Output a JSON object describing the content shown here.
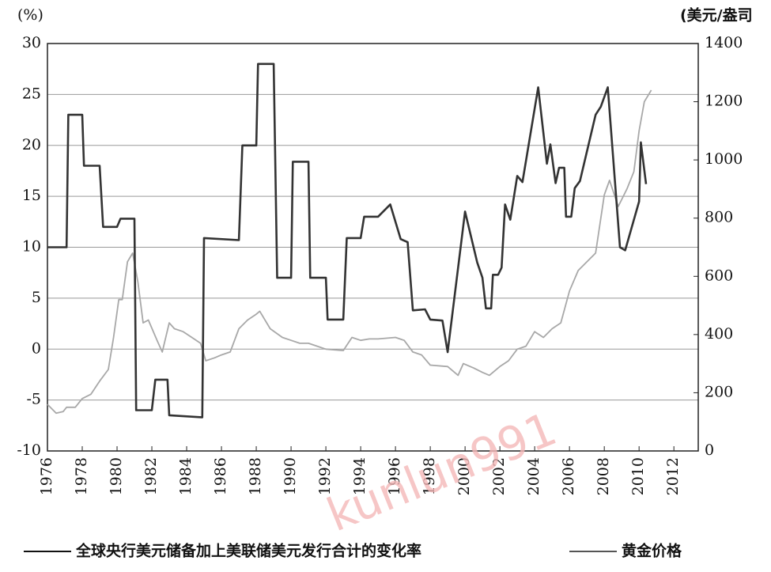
{
  "chart_data": {
    "type": "line",
    "y_label": "(%)",
    "y2_label": "(美元/盎司",
    "watermark": "kunlun991",
    "xlim": [
      1976,
      2013.4
    ],
    "xticks": [
      1976,
      1978,
      1980,
      1982,
      1984,
      1986,
      1988,
      1990,
      1992,
      1994,
      1996,
      1998,
      2000,
      2002,
      2004,
      2006,
      2008,
      2010,
      2012
    ],
    "ylim": [
      -10,
      30
    ],
    "yticks": [
      -10,
      -5,
      0,
      5,
      10,
      15,
      20,
      25,
      30
    ],
    "y2lim": [
      0,
      1400
    ],
    "y2ticks": [
      0,
      200,
      400,
      600,
      800,
      1000,
      1200,
      1400
    ],
    "grid": true,
    "legend": "bottom",
    "series": [
      {
        "name": "全球央行美元储备加上美联储美元发行合计的变化率",
        "color": "#333333",
        "x": [
          1976,
          1977.1,
          1977.2,
          1978,
          1978.1,
          1979,
          1979.2,
          1980,
          1980.2,
          1981,
          1981.1,
          1982,
          1982.2,
          1982.9,
          1983,
          1984.9,
          1985,
          1987,
          1987.2,
          1988,
          1988.1,
          1989,
          1989.2,
          1990,
          1990.1,
          1991,
          1991.1,
          1992,
          1992.1,
          1993,
          1993.2,
          1994,
          1994.2,
          1995,
          1995.7,
          1996.3,
          1996.7,
          1997,
          1997.7,
          1998,
          1998.7,
          1999,
          2000,
          2000.7,
          2001,
          2001.2,
          2001.5,
          2001.6,
          2001.9,
          2002.1,
          2002.3,
          2002.6,
          2003,
          2003.3,
          2004.2,
          2004.7,
          2004.9,
          2005.2,
          2005.4,
          2005.7,
          2005.8,
          2006.1,
          2006.3,
          2006.6,
          2007.5,
          2007.8,
          2008.2,
          2008.9,
          2009.2,
          2010,
          2010.1,
          2010.4
        ],
        "values": [
          10,
          10,
          23,
          23,
          18,
          18,
          12,
          12,
          12.8,
          12.8,
          -6,
          -6,
          -3,
          -3,
          -6.5,
          -6.7,
          10.9,
          10.7,
          20,
          20,
          28,
          28,
          7,
          7,
          18.4,
          18.4,
          7,
          7,
          2.9,
          2.9,
          10.9,
          10.9,
          13,
          13,
          14.2,
          10.8,
          10.5,
          3.8,
          3.9,
          2.9,
          2.8,
          -0.3,
          13.5,
          8.5,
          7,
          4,
          4,
          7.3,
          7.3,
          8,
          14.2,
          12.7,
          17,
          16.4,
          25.7,
          18.2,
          20.1,
          16.3,
          17.8,
          17.8,
          13,
          13,
          15.8,
          16.5,
          23,
          23.8,
          25.7,
          10,
          9.7,
          14.5,
          20.3,
          16.2
        ]
      },
      {
        "name": "黄金价格",
        "color": "#a8a8a8",
        "axis": "y2",
        "x": [
          1976,
          1976.5,
          1976.9,
          1977.1,
          1977.6,
          1978,
          1978.5,
          1979,
          1979.5,
          1979.8,
          1980.1,
          1980.3,
          1980.6,
          1980.9,
          1981.2,
          1981.5,
          1981.8,
          1982.3,
          1982.6,
          1983,
          1983.3,
          1983.8,
          1984.3,
          1984.8,
          1985.1,
          1985.6,
          1986,
          1986.5,
          1987,
          1987.5,
          1988,
          1988.2,
          1988.8,
          1989.5,
          1990,
          1990.5,
          1991,
          1991.5,
          1992,
          1993,
          1993.5,
          1994,
          1994.5,
          1995,
          1996,
          1996.5,
          1997,
          1997.5,
          1998,
          1999,
          1999.6,
          1999.9,
          2000.5,
          2001,
          2001.4,
          2002,
          2002.5,
          2003,
          2003.5,
          2004,
          2004.5,
          2005,
          2005.5,
          2006,
          2006.5,
          2007,
          2007.5,
          2008,
          2008.3,
          2008.8,
          2009.3,
          2009.7,
          2010,
          2010.3,
          2010.7
        ],
        "values": [
          160,
          130,
          135,
          150,
          150,
          180,
          195,
          240,
          280,
          390,
          520,
          520,
          650,
          680,
          580,
          440,
          450,
          380,
          340,
          440,
          420,
          410,
          390,
          370,
          310,
          320,
          330,
          340,
          420,
          450,
          470,
          480,
          420,
          390,
          380,
          370,
          370,
          360,
          350,
          345,
          390,
          380,
          385,
          385,
          390,
          380,
          340,
          330,
          295,
          290,
          260,
          300,
          285,
          270,
          260,
          290,
          310,
          350,
          360,
          410,
          390,
          420,
          440,
          550,
          620,
          650,
          680,
          880,
          930,
          840,
          900,
          960,
          1100,
          1200,
          1240
        ]
      }
    ]
  }
}
